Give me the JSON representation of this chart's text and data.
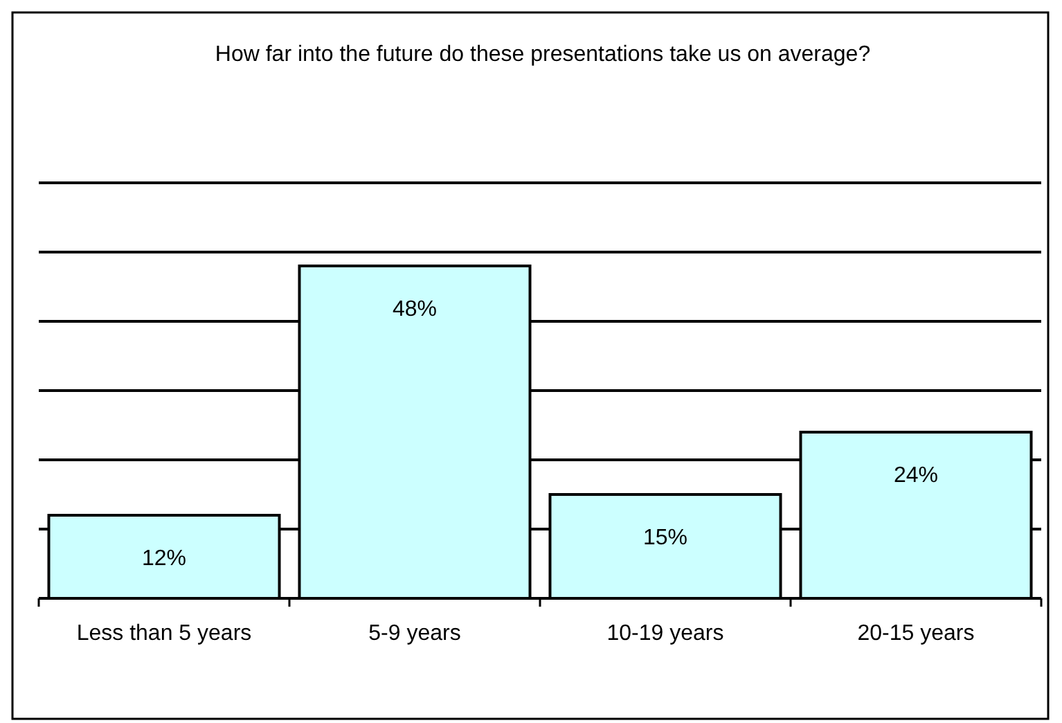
{
  "chart_data": {
    "type": "bar",
    "title": "How far into the future do these presentations take us on average?",
    "categories": [
      "Less than 5 years",
      "5-9 years",
      "10-19 years",
      "20-15 years"
    ],
    "values": [
      12,
      48,
      15,
      24
    ],
    "color": "#ccffff",
    "ylim": [
      0,
      60
    ],
    "yticks": [
      {
        "value": 0,
        "label": null
      },
      {
        "value": 10,
        "label": null
      },
      {
        "value": 20,
        "label": null
      },
      {
        "value": 30,
        "label": null
      },
      {
        "value": 40,
        "label": null
      },
      {
        "value": 50,
        "label": null
      },
      {
        "value": 60,
        "label": null
      }
    ],
    "tick_labels": "x",
    "grid": "y",
    "data_labels": true,
    "value_labels": [
      "12%",
      "48%",
      "15%",
      "24%"
    ]
  }
}
